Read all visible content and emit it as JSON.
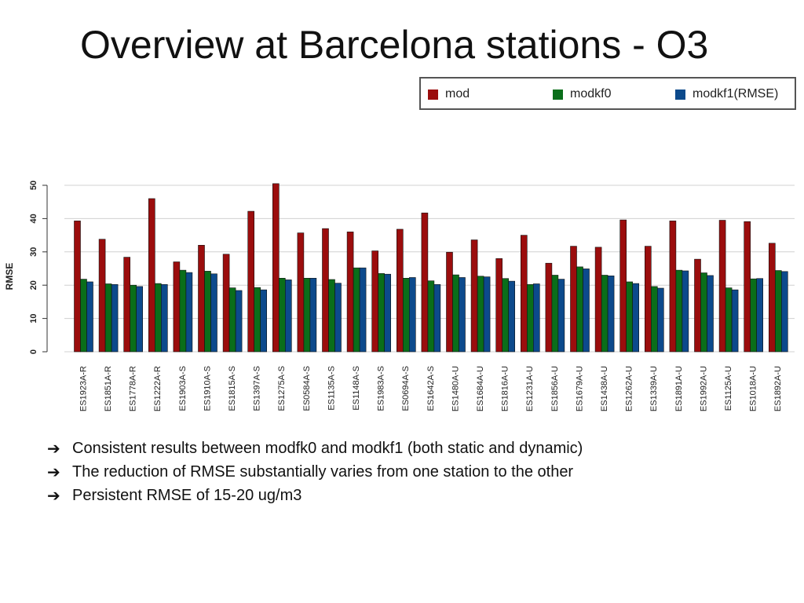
{
  "slide": {
    "title": "Overview at Barcelona stations - O3",
    "bullets": [
      "Consistent results between modfk0 and modkf1 (both static and dynamic)",
      "The reduction of RMSE substantially varies from one station to the other",
      "Persistent RMSE of 15-20 ug/m3"
    ],
    "bullet_icon": "right-arrow-icon"
  },
  "chart_data": {
    "type": "bar",
    "title": "",
    "xlabel": "",
    "ylabel": "RMSE",
    "ylim": [
      0,
      50
    ],
    "yticks": [
      0,
      10,
      20,
      30,
      40,
      50
    ],
    "grid": true,
    "legend_position": "top-right",
    "categories": [
      "ES1923A-R",
      "ES1851A-R",
      "ES1778A-R",
      "ES1222A-R",
      "ES1903A-S",
      "ES1910A-S",
      "ES1815A-S",
      "ES1397A-S",
      "ES1275A-S",
      "ES0584A-S",
      "ES1135A-S",
      "ES1148A-S",
      "ES1983A-S",
      "ES0694A-S",
      "ES1642A-S",
      "ES1480A-U",
      "ES1684A-U",
      "ES1816A-U",
      "ES1231A-U",
      "ES1856A-U",
      "ES1679A-U",
      "ES1438A-U",
      "ES1262A-U",
      "ES1339A-U",
      "ES1891A-U",
      "ES1992A-U",
      "ES1125A-U",
      "ES1018A-U",
      "ES1892A-U"
    ],
    "series": [
      {
        "name": "mod",
        "color": "#9b0d0d",
        "values": [
          39.3,
          33.8,
          28.4,
          46,
          27,
          32,
          29.3,
          42.2,
          50.5,
          35.7,
          37,
          36,
          30.3,
          36.8,
          41.7,
          29.9,
          33.6,
          28,
          35,
          26.6,
          31.7,
          31.4,
          39.6,
          31.7,
          39.3,
          27.8,
          39.5,
          39.1,
          32.6
        ]
      },
      {
        "name": "modkf0",
        "color": "#0a6e1a",
        "values": [
          21.8,
          20.4,
          20,
          20.5,
          24.5,
          24.2,
          19.2,
          19.3,
          22.1,
          22.1,
          21.7,
          25.2,
          23.5,
          22.1,
          21.3,
          23.1,
          22.7,
          22,
          20.2,
          23,
          25.5,
          23,
          21,
          19.6,
          24.5,
          23.7,
          19.2,
          21.9,
          24.4
        ]
      },
      {
        "name": "modkf1(RMSE)",
        "color": "#0c4a8c",
        "values": [
          21,
          20.2,
          19.6,
          20.2,
          23.8,
          23.4,
          18.4,
          18.6,
          21.6,
          22.1,
          20.6,
          25.2,
          23.3,
          22.3,
          20.2,
          22.3,
          22.5,
          21.2,
          20.4,
          21.8,
          24.9,
          22.8,
          20.5,
          19.1,
          24.3,
          22.9,
          18.6,
          22,
          24.1
        ]
      }
    ]
  }
}
